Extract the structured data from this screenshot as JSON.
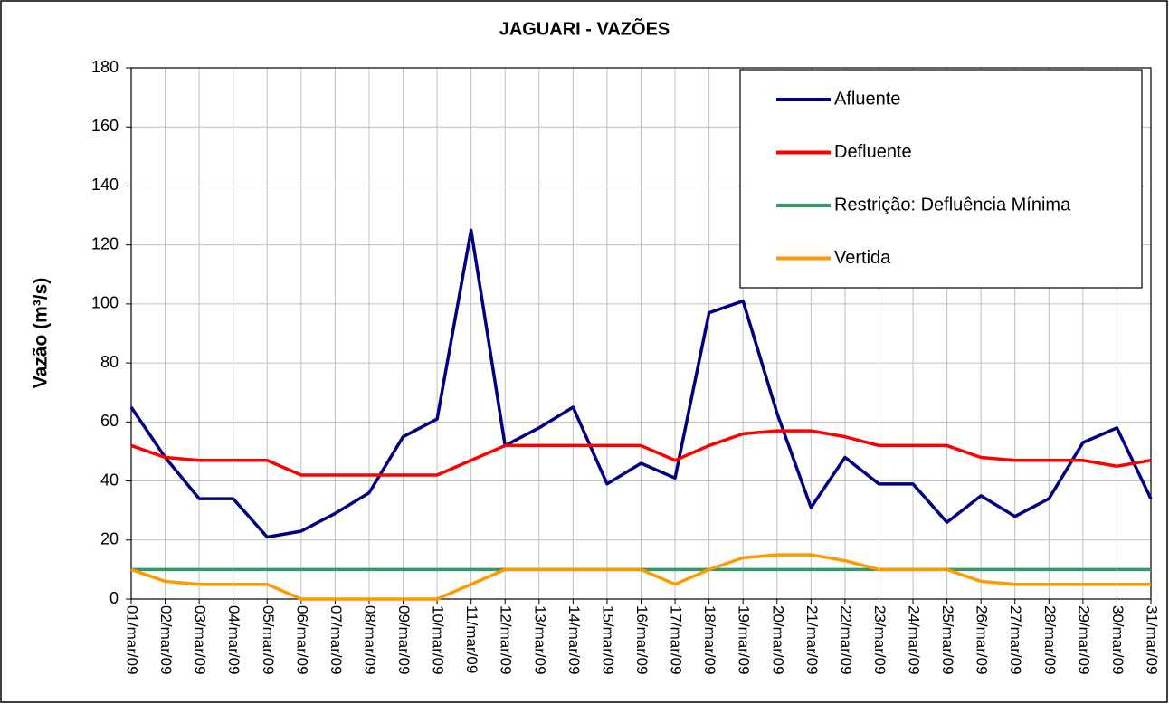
{
  "chart_data": {
    "type": "line",
    "title": "JAGUARI - VAZÕES",
    "y_label": "Vazão (m³/s)",
    "categories": [
      "01/mar/09",
      "02/mar/09",
      "03/mar/09",
      "04/mar/09",
      "05/mar/09",
      "06/mar/09",
      "07/mar/09",
      "08/mar/09",
      "09/mar/09",
      "10/mar/09",
      "11/mar/09",
      "12/mar/09",
      "13/mar/09",
      "14/mar/09",
      "15/mar/09",
      "16/mar/09",
      "17/mar/09",
      "18/mar/09",
      "19/mar/09",
      "20/mar/09",
      "21/mar/09",
      "22/mar/09",
      "23/mar/09",
      "24/mar/09",
      "25/mar/09",
      "26/mar/09",
      "27/mar/09",
      "28/mar/09",
      "29/mar/09",
      "30/mar/09",
      "31/mar/09"
    ],
    "series": [
      {
        "name": "Afluente",
        "color": "#000080",
        "values": [
          65,
          48,
          34,
          34,
          21,
          23,
          29,
          36,
          55,
          61,
          125,
          52,
          58,
          65,
          39,
          46,
          41,
          97,
          101,
          63,
          31,
          48,
          39,
          39,
          26,
          35,
          28,
          34,
          53,
          58,
          34
        ]
      },
      {
        "name": "Defluente",
        "color": "#ff0000",
        "values": [
          52,
          48,
          47,
          47,
          47,
          42,
          42,
          42,
          42,
          42,
          47,
          52,
          52,
          52,
          52,
          52,
          47,
          52,
          56,
          57,
          57,
          55,
          52,
          52,
          52,
          48,
          47,
          47,
          47,
          45,
          47
        ]
      },
      {
        "name": "Restrição: Defluência Mínima",
        "color": "#339966",
        "values": [
          10,
          10,
          10,
          10,
          10,
          10,
          10,
          10,
          10,
          10,
          10,
          10,
          10,
          10,
          10,
          10,
          10,
          10,
          10,
          10,
          10,
          10,
          10,
          10,
          10,
          10,
          10,
          10,
          10,
          10,
          10
        ]
      },
      {
        "name": "Vertida",
        "color": "#ff9900",
        "values": [
          10,
          6,
          5,
          5,
          5,
          0,
          0,
          0,
          0,
          0,
          5,
          10,
          10,
          10,
          10,
          10,
          5,
          10,
          14,
          15,
          15,
          13,
          10,
          10,
          10,
          6,
          5,
          5,
          5,
          5,
          5
        ]
      }
    ],
    "ylim": [
      0,
      180
    ],
    "yticks": [
      0,
      20,
      40,
      60,
      80,
      100,
      120,
      140,
      160,
      180
    ],
    "grid": true,
    "legend": "upper right"
  }
}
